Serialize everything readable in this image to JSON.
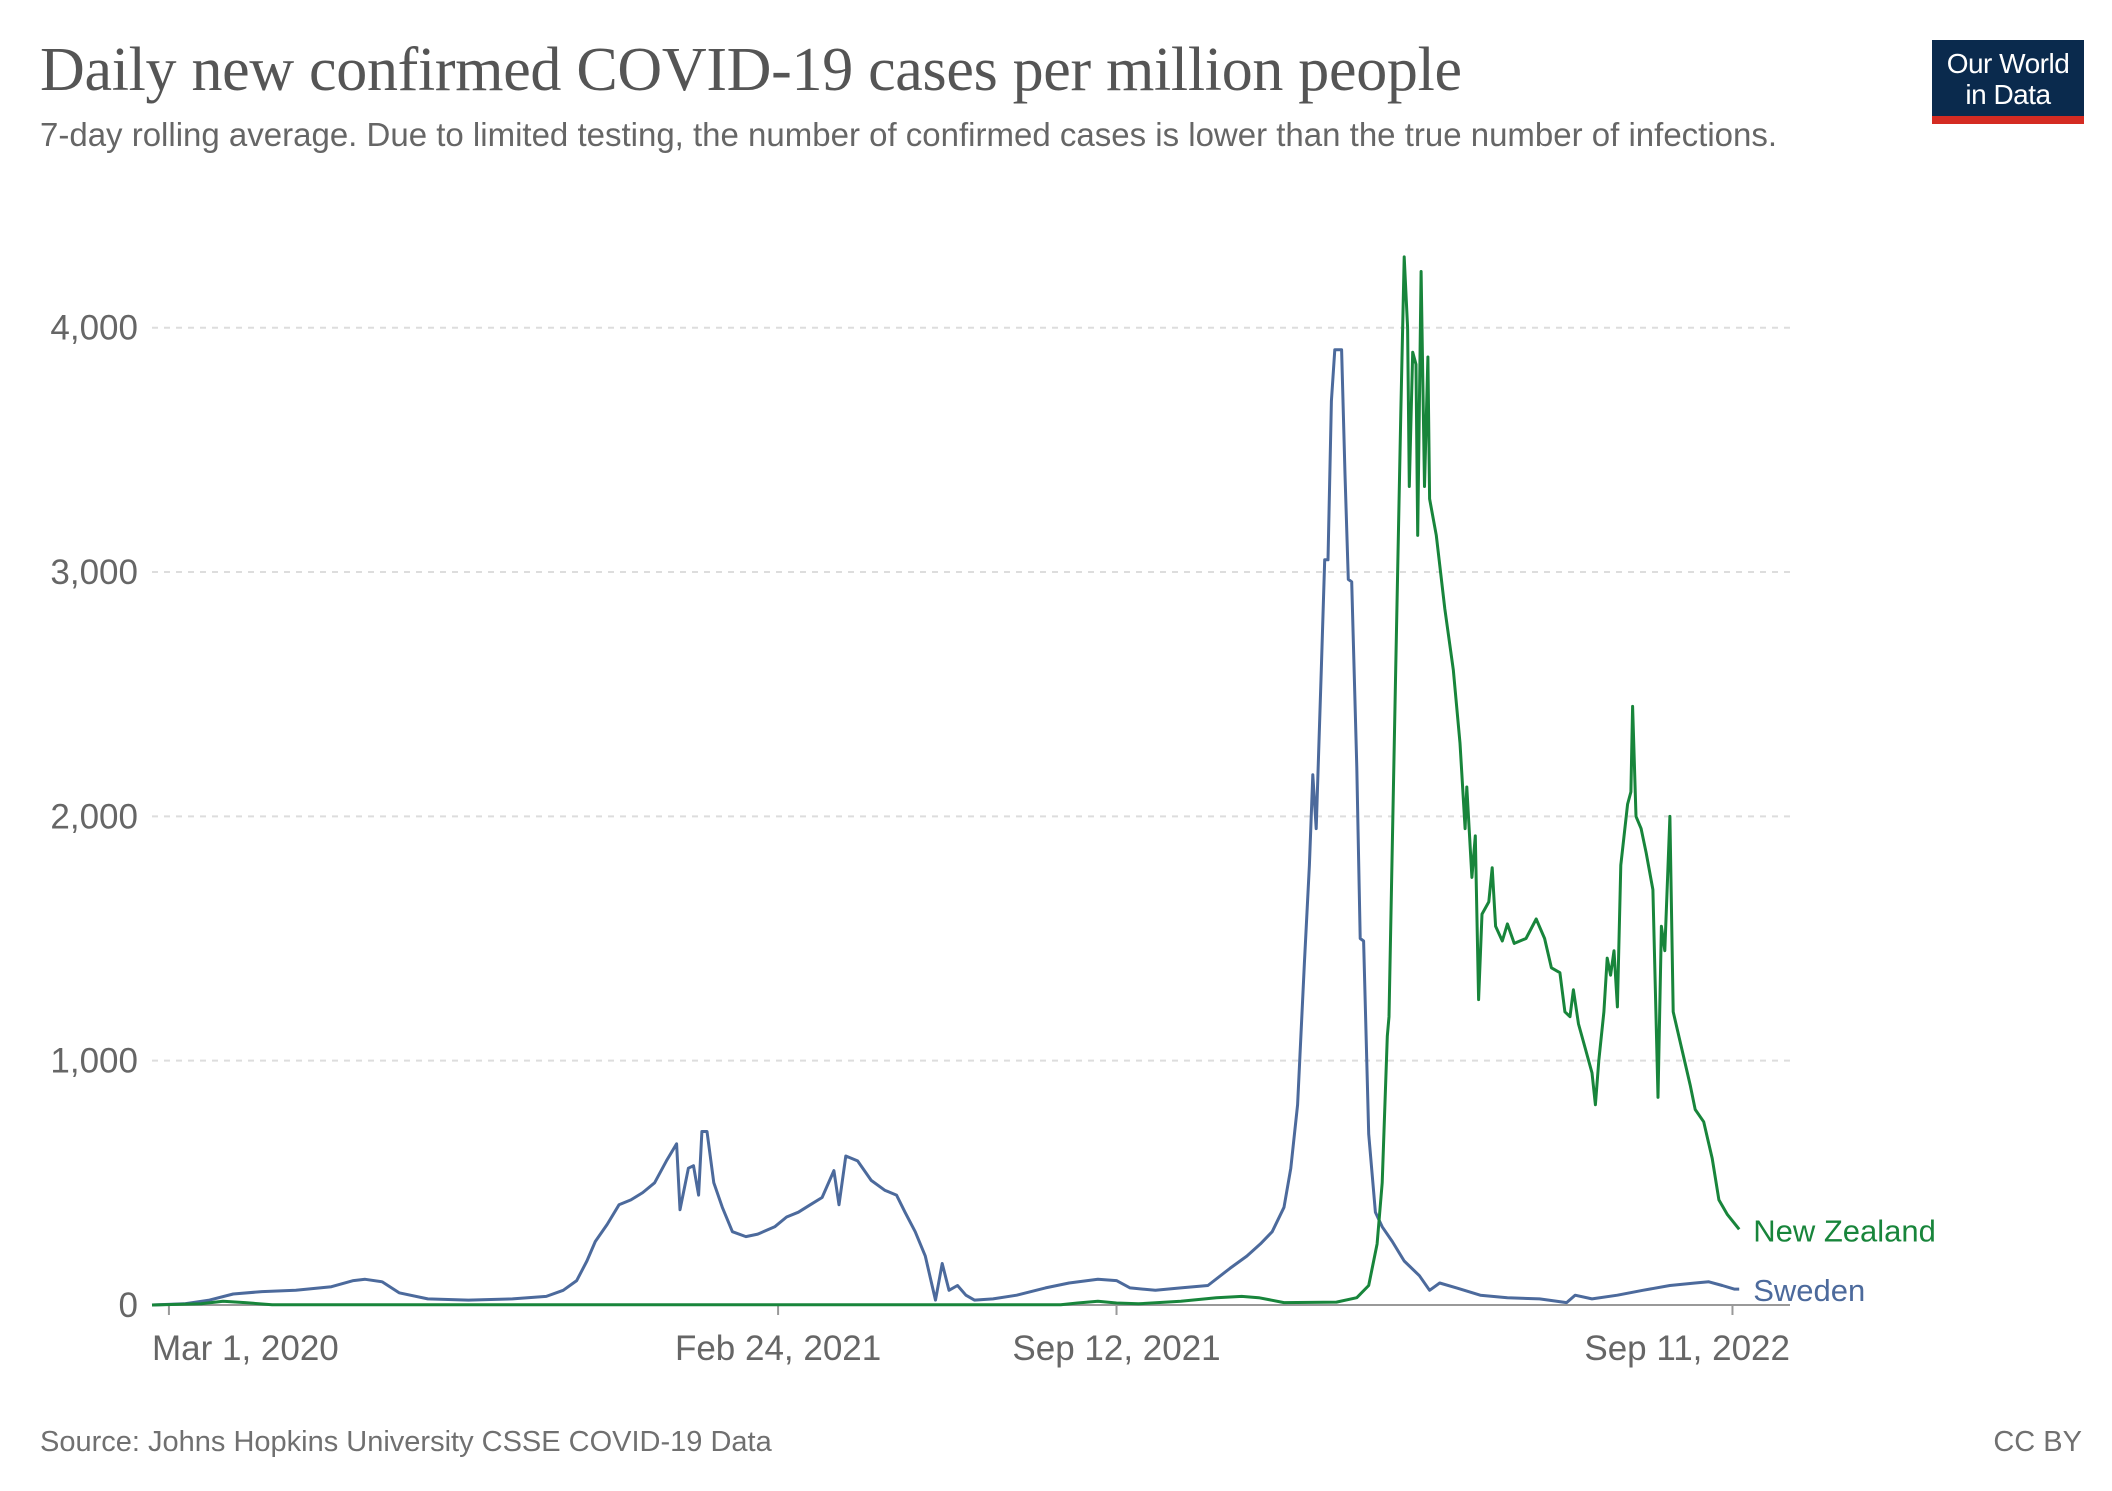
{
  "header": {
    "title": "Daily new confirmed COVID-19 cases per million people",
    "subtitle": "7-day rolling average. Due to limited testing, the number of confirmed cases is lower than the true number of infections.",
    "logo_line1": "Our World",
    "logo_line2": "in Data"
  },
  "footer": {
    "source": "Source: Johns Hopkins University CSSE COVID-19 Data",
    "license": "CC BY"
  },
  "chart_data": {
    "type": "line",
    "title": "Daily new confirmed COVID-19 cases per million people",
    "subtitle": "7-day rolling average. Due to limited testing, the number of confirmed cases is lower than the true number of infections.",
    "xlabel": "",
    "ylabel": "",
    "xlim": [
      "2020-02-20",
      "2022-10-15"
    ],
    "ylim": [
      0,
      4400
    ],
    "yticks": [
      0,
      1000,
      2000,
      3000,
      4000
    ],
    "ytick_labels": [
      "0",
      "1,000",
      "2,000",
      "3,000",
      "4,000"
    ],
    "xticks": [
      "2020-03-01",
      "2021-02-24",
      "2021-09-12",
      "2022-09-11"
    ],
    "xtick_labels": [
      "Mar 1, 2020",
      "Feb 24, 2021",
      "Sep 12, 2021",
      "Sep 11, 2022"
    ],
    "grid": "horizontal dashed",
    "legend": "labels at line ends (right)",
    "colors": {
      "Sweden": "#4c6a9c",
      "New Zealand": "#18853b"
    },
    "series": [
      {
        "name": "Sweden",
        "points": [
          [
            "2020-02-20",
            0
          ],
          [
            "2020-03-10",
            5
          ],
          [
            "2020-03-25",
            20
          ],
          [
            "2020-04-08",
            45
          ],
          [
            "2020-04-25",
            55
          ],
          [
            "2020-05-15",
            60
          ],
          [
            "2020-06-05",
            75
          ],
          [
            "2020-06-18",
            100
          ],
          [
            "2020-06-25",
            105
          ],
          [
            "2020-07-05",
            95
          ],
          [
            "2020-07-15",
            50
          ],
          [
            "2020-08-01",
            25
          ],
          [
            "2020-08-25",
            20
          ],
          [
            "2020-09-20",
            25
          ],
          [
            "2020-10-10",
            35
          ],
          [
            "2020-10-20",
            60
          ],
          [
            "2020-10-28",
            100
          ],
          [
            "2020-11-03",
            180
          ],
          [
            "2020-11-08",
            260
          ],
          [
            "2020-11-15",
            330
          ],
          [
            "2020-11-22",
            410
          ],
          [
            "2020-11-29",
            430
          ],
          [
            "2020-12-06",
            460
          ],
          [
            "2020-12-13",
            500
          ],
          [
            "2020-12-20",
            590
          ],
          [
            "2020-12-26",
            660
          ],
          [
            "2020-12-28",
            390
          ],
          [
            "2021-01-02",
            560
          ],
          [
            "2021-01-05",
            570
          ],
          [
            "2021-01-08",
            450
          ],
          [
            "2021-01-10",
            710
          ],
          [
            "2021-01-13",
            710
          ],
          [
            "2021-01-17",
            500
          ],
          [
            "2021-01-22",
            400
          ],
          [
            "2021-01-28",
            300
          ],
          [
            "2021-02-05",
            280
          ],
          [
            "2021-02-12",
            290
          ],
          [
            "2021-02-22",
            320
          ],
          [
            "2021-03-01",
            360
          ],
          [
            "2021-03-08",
            380
          ],
          [
            "2021-03-15",
            410
          ],
          [
            "2021-03-22",
            440
          ],
          [
            "2021-03-29",
            550
          ],
          [
            "2021-04-01",
            410
          ],
          [
            "2021-04-05",
            610
          ],
          [
            "2021-04-12",
            590
          ],
          [
            "2021-04-20",
            510
          ],
          [
            "2021-04-28",
            470
          ],
          [
            "2021-05-05",
            450
          ],
          [
            "2021-05-10",
            380
          ],
          [
            "2021-05-16",
            300
          ],
          [
            "2021-05-22",
            200
          ],
          [
            "2021-05-26",
            80
          ],
          [
            "2021-05-28",
            20
          ],
          [
            "2021-06-01",
            170
          ],
          [
            "2021-06-05",
            60
          ],
          [
            "2021-06-10",
            80
          ],
          [
            "2021-06-15",
            40
          ],
          [
            "2021-06-20",
            20
          ],
          [
            "2021-07-01",
            25
          ],
          [
            "2021-07-15",
            40
          ],
          [
            "2021-08-01",
            70
          ],
          [
            "2021-08-15",
            90
          ],
          [
            "2021-09-01",
            105
          ],
          [
            "2021-09-12",
            100
          ],
          [
            "2021-09-20",
            70
          ],
          [
            "2021-10-05",
            60
          ],
          [
            "2021-10-20",
            70
          ],
          [
            "2021-11-05",
            80
          ],
          [
            "2021-11-18",
            150
          ],
          [
            "2021-11-28",
            200
          ],
          [
            "2021-12-06",
            250
          ],
          [
            "2021-12-13",
            300
          ],
          [
            "2021-12-20",
            400
          ],
          [
            "2021-12-24",
            560
          ],
          [
            "2021-12-28",
            820
          ],
          [
            "2022-01-01",
            1400
          ],
          [
            "2022-01-04",
            1800
          ],
          [
            "2022-01-06",
            2170
          ],
          [
            "2022-01-08",
            1950
          ],
          [
            "2022-01-11",
            2600
          ],
          [
            "2022-01-13",
            3050
          ],
          [
            "2022-01-15",
            3050
          ],
          [
            "2022-01-17",
            3700
          ],
          [
            "2022-01-19",
            3910
          ],
          [
            "2022-01-23",
            3910
          ],
          [
            "2022-01-25",
            3400
          ],
          [
            "2022-01-27",
            2970
          ],
          [
            "2022-01-29",
            2960
          ],
          [
            "2022-02-01",
            2200
          ],
          [
            "2022-02-03",
            1500
          ],
          [
            "2022-02-05",
            1490
          ],
          [
            "2022-02-08",
            700
          ],
          [
            "2022-02-12",
            380
          ],
          [
            "2022-02-16",
            320
          ],
          [
            "2022-02-22",
            260
          ],
          [
            "2022-03-01",
            180
          ],
          [
            "2022-03-10",
            120
          ],
          [
            "2022-03-16",
            60
          ],
          [
            "2022-03-22",
            90
          ],
          [
            "2022-04-01",
            70
          ],
          [
            "2022-04-15",
            40
          ],
          [
            "2022-05-01",
            30
          ],
          [
            "2022-05-20",
            25
          ],
          [
            "2022-06-05",
            10
          ],
          [
            "2022-06-10",
            40
          ],
          [
            "2022-06-20",
            25
          ],
          [
            "2022-07-05",
            40
          ],
          [
            "2022-07-20",
            60
          ],
          [
            "2022-08-05",
            80
          ],
          [
            "2022-08-20",
            90
          ],
          [
            "2022-08-28",
            95
          ],
          [
            "2022-09-05",
            80
          ],
          [
            "2022-09-12",
            65
          ],
          [
            "2022-09-15",
            65
          ]
        ]
      },
      {
        "name": "New Zealand",
        "points": [
          [
            "2020-02-20",
            0
          ],
          [
            "2020-03-20",
            5
          ],
          [
            "2020-04-02",
            15
          ],
          [
            "2020-04-15",
            10
          ],
          [
            "2020-05-01",
            1
          ],
          [
            "2021-08-10",
            1
          ],
          [
            "2021-08-20",
            8
          ],
          [
            "2021-09-01",
            15
          ],
          [
            "2021-09-12",
            8
          ],
          [
            "2021-09-25",
            5
          ],
          [
            "2021-10-20",
            15
          ],
          [
            "2021-11-10",
            30
          ],
          [
            "2021-11-25",
            35
          ],
          [
            "2021-12-05",
            30
          ],
          [
            "2021-12-20",
            10
          ],
          [
            "2022-01-20",
            12
          ],
          [
            "2022-02-01",
            30
          ],
          [
            "2022-02-08",
            80
          ],
          [
            "2022-02-13",
            250
          ],
          [
            "2022-02-16",
            500
          ],
          [
            "2022-02-19",
            1100
          ],
          [
            "2022-02-20",
            1180
          ],
          [
            "2022-02-24",
            2600
          ],
          [
            "2022-02-27",
            3650
          ],
          [
            "2022-03-01",
            4290
          ],
          [
            "2022-03-03",
            4000
          ],
          [
            "2022-03-04",
            3350
          ],
          [
            "2022-03-06",
            3900
          ],
          [
            "2022-03-08",
            3850
          ],
          [
            "2022-03-09",
            3150
          ],
          [
            "2022-03-11",
            4230
          ],
          [
            "2022-03-13",
            3350
          ],
          [
            "2022-03-15",
            3880
          ],
          [
            "2022-03-16",
            3300
          ],
          [
            "2022-03-20",
            3150
          ],
          [
            "2022-03-25",
            2850
          ],
          [
            "2022-03-30",
            2600
          ],
          [
            "2022-04-03",
            2300
          ],
          [
            "2022-04-06",
            1950
          ],
          [
            "2022-04-07",
            2120
          ],
          [
            "2022-04-10",
            1750
          ],
          [
            "2022-04-12",
            1920
          ],
          [
            "2022-04-14",
            1250
          ],
          [
            "2022-04-16",
            1600
          ],
          [
            "2022-04-20",
            1650
          ],
          [
            "2022-04-22",
            1790
          ],
          [
            "2022-04-24",
            1550
          ],
          [
            "2022-04-28",
            1490
          ],
          [
            "2022-05-01",
            1560
          ],
          [
            "2022-05-05",
            1480
          ],
          [
            "2022-05-12",
            1500
          ],
          [
            "2022-05-18",
            1580
          ],
          [
            "2022-05-23",
            1500
          ],
          [
            "2022-05-27",
            1380
          ],
          [
            "2022-06-01",
            1360
          ],
          [
            "2022-06-04",
            1200
          ],
          [
            "2022-06-07",
            1180
          ],
          [
            "2022-06-09",
            1290
          ],
          [
            "2022-06-12",
            1150
          ],
          [
            "2022-06-16",
            1050
          ],
          [
            "2022-06-20",
            950
          ],
          [
            "2022-06-22",
            820
          ],
          [
            "2022-06-24",
            1000
          ],
          [
            "2022-06-27",
            1200
          ],
          [
            "2022-06-29",
            1420
          ],
          [
            "2022-07-01",
            1350
          ],
          [
            "2022-07-03",
            1450
          ],
          [
            "2022-07-05",
            1220
          ],
          [
            "2022-07-07",
            1800
          ],
          [
            "2022-07-11",
            2050
          ],
          [
            "2022-07-13",
            2100
          ],
          [
            "2022-07-14",
            2450
          ],
          [
            "2022-07-16",
            2000
          ],
          [
            "2022-07-19",
            1950
          ],
          [
            "2022-07-22",
            1850
          ],
          [
            "2022-07-26",
            1700
          ],
          [
            "2022-07-29",
            850
          ],
          [
            "2022-07-31",
            1550
          ],
          [
            "2022-08-02",
            1450
          ],
          [
            "2022-08-05",
            2000
          ],
          [
            "2022-08-07",
            1200
          ],
          [
            "2022-08-12",
            1050
          ],
          [
            "2022-08-17",
            900
          ],
          [
            "2022-08-20",
            800
          ],
          [
            "2022-08-25",
            750
          ],
          [
            "2022-08-30",
            600
          ],
          [
            "2022-09-03",
            430
          ],
          [
            "2022-09-08",
            370
          ],
          [
            "2022-09-15",
            310
          ]
        ]
      }
    ]
  }
}
